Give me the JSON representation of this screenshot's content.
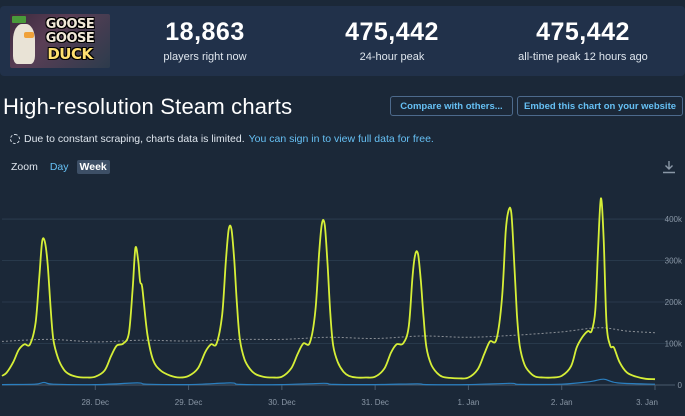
{
  "game": {
    "logo_icon": "goose-goose-duck-logo",
    "logo_lines": [
      "GOOSE",
      "GOOSE",
      "DUCK"
    ]
  },
  "stats": [
    {
      "value": "18,863",
      "label": "players right now"
    },
    {
      "value": "475,442",
      "label": "24-hour peak"
    },
    {
      "value": "475,442",
      "label": "all-time peak 12 hours ago"
    }
  ],
  "section": {
    "title": "High-resolution Steam charts",
    "compare_button": "Compare with others...",
    "embed_button": "Embed this chart on your website"
  },
  "notice": {
    "text": "Due to constant scraping, charts data is limited.",
    "link": "You can sign in to view full data for free."
  },
  "zoom": {
    "label": "Zoom",
    "day": "Day",
    "week": "Week"
  },
  "icons": {
    "download": "download-icon",
    "spinner": "loading-spinner-icon"
  },
  "colors": {
    "players_line": "#d6ef37",
    "average_line": "#8a8f96",
    "twitch_line": "#2a7fc0",
    "link": "#66c0f4"
  },
  "chart_data": {
    "type": "line",
    "title": "",
    "xlabel": "",
    "ylabel": "",
    "x_ticks": [
      "28. Dec",
      "29. Dec",
      "30. Dec",
      "31. Dec",
      "1. Jan",
      "2. Jan",
      "3. Jan"
    ],
    "y_ticks": [
      "0",
      "100k",
      "200k",
      "300k",
      "400k"
    ],
    "ylim": [
      0,
      470000
    ],
    "grid": true,
    "x_range": [
      27.0,
      34.0
    ],
    "series": [
      {
        "name": "",
        "role": "players",
        "x": [
          27.0,
          27.05,
          27.12,
          27.18,
          27.24,
          27.3,
          27.36,
          27.4,
          27.43,
          27.46,
          27.49,
          27.52,
          27.55,
          27.6,
          27.66,
          27.72,
          27.8,
          27.9,
          28.0,
          28.1,
          28.17,
          28.23,
          28.3,
          28.36,
          28.4,
          28.43,
          28.46,
          28.48,
          28.5,
          28.52,
          28.56,
          28.62,
          28.7,
          28.8,
          28.9,
          29.0,
          29.1,
          29.18,
          29.24,
          29.3,
          29.36,
          29.4,
          29.43,
          29.46,
          29.49,
          29.52,
          29.55,
          29.6,
          29.66,
          29.72,
          29.8,
          29.9,
          30.0,
          30.1,
          30.17,
          30.23,
          30.3,
          30.36,
          30.4,
          30.43,
          30.46,
          30.49,
          30.52,
          30.55,
          30.6,
          30.66,
          30.72,
          30.8,
          30.9,
          31.0,
          31.1,
          31.17,
          31.23,
          31.3,
          31.36,
          31.4,
          31.43,
          31.46,
          31.49,
          31.52,
          31.55,
          31.6,
          31.66,
          31.72,
          31.8,
          31.9,
          32.0,
          32.1,
          32.17,
          32.23,
          32.3,
          32.36,
          32.4,
          32.43,
          32.46,
          32.49,
          32.52,
          32.55,
          32.6,
          32.66,
          32.72,
          32.8,
          32.9,
          33.0,
          33.1,
          33.16,
          33.22,
          33.28,
          33.32,
          33.36,
          33.39,
          33.42,
          33.45,
          33.48,
          33.52,
          33.56,
          33.62,
          33.7,
          33.8,
          33.9,
          34.0
        ],
        "y": [
          22000,
          30000,
          55000,
          85000,
          98000,
          98000,
          150000,
          260000,
          345000,
          345000,
          290000,
          190000,
          110000,
          65000,
          38000,
          26000,
          20000,
          18000,
          20000,
          35000,
          70000,
          95000,
          100000,
          125000,
          230000,
          330000,
          300000,
          250000,
          240000,
          200000,
          120000,
          60000,
          35000,
          23000,
          18000,
          22000,
          40000,
          80000,
          98000,
          100000,
          170000,
          300000,
          375000,
          375000,
          300000,
          190000,
          110000,
          62000,
          38000,
          26000,
          20000,
          18000,
          20000,
          40000,
          75000,
          100000,
          102000,
          180000,
          320000,
          390000,
          385000,
          290000,
          170000,
          95000,
          55000,
          32000,
          22000,
          18000,
          18000,
          20000,
          40000,
          78000,
          98000,
          100000,
          140000,
          260000,
          315000,
          315000,
          250000,
          160000,
          90000,
          50000,
          30000,
          20000,
          17000,
          16000,
          18000,
          38000,
          75000,
          105000,
          110000,
          210000,
          370000,
          420000,
          415000,
          300000,
          170000,
          95000,
          50000,
          30000,
          20000,
          18000,
          18000,
          22000,
          45000,
          90000,
          115000,
          130000,
          130000,
          180000,
          330000,
          450000,
          350000,
          150000,
          95000,
          90000,
          55000,
          30000,
          20000,
          15000,
          14000
        ]
      },
      {
        "name": "",
        "role": "average",
        "x": [
          27.0,
          27.5,
          28.0,
          28.5,
          29.0,
          29.5,
          30.0,
          30.5,
          31.0,
          31.5,
          32.0,
          32.5,
          33.0,
          33.4,
          33.7,
          34.0
        ],
        "y": [
          105000,
          110000,
          104000,
          108000,
          106000,
          110000,
          110000,
          115000,
          112000,
          118000,
          115000,
          120000,
          128000,
          138000,
          130000,
          126000
        ]
      },
      {
        "name": "",
        "role": "twitch",
        "x": [
          27.0,
          27.35,
          27.45,
          27.55,
          28.0,
          28.45,
          28.55,
          29.0,
          29.45,
          29.55,
          30.0,
          30.45,
          30.55,
          31.0,
          31.45,
          31.55,
          32.0,
          32.45,
          32.55,
          33.0,
          33.3,
          33.45,
          33.6,
          34.0
        ],
        "y": [
          1000,
          2000,
          6000,
          2000,
          1000,
          5000,
          2000,
          1000,
          5000,
          1500,
          1000,
          4000,
          1500,
          1000,
          3000,
          1000,
          1000,
          4000,
          1500,
          2000,
          8000,
          14000,
          5000,
          2000
        ]
      }
    ]
  }
}
